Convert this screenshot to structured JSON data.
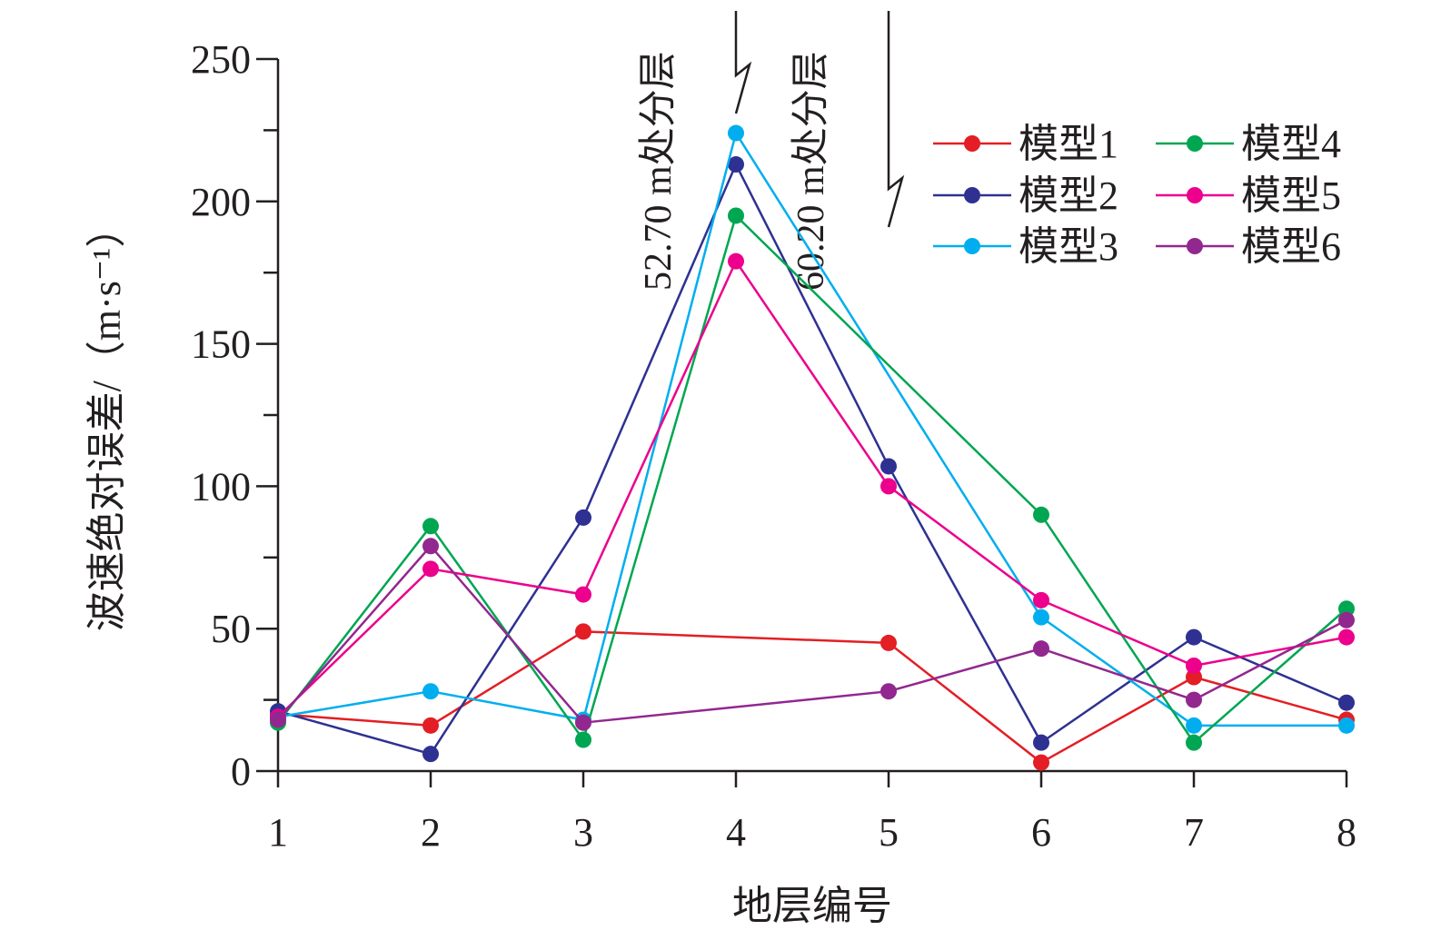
{
  "chart_data": {
    "type": "line",
    "xlabel": "地层编号",
    "ylabel": "波速绝对误差/（m·s⁻¹）",
    "categories": [
      "1",
      "2",
      "3",
      "4",
      "5",
      "6",
      "7",
      "8"
    ],
    "x": [
      1,
      2,
      3,
      4,
      5,
      6,
      7,
      8
    ],
    "ylim": [
      0,
      250
    ],
    "yticks": [
      0,
      50,
      100,
      150,
      200,
      250
    ],
    "ytick_labels": [
      "0",
      "50",
      "100",
      "150",
      "200",
      "250"
    ],
    "grid": false,
    "legend_position": "top-right",
    "series": [
      {
        "name": "模型1",
        "color": "#e31e24",
        "values": [
          20,
          16,
          49,
          null,
          45,
          3,
          33,
          18
        ]
      },
      {
        "name": "模型2",
        "color": "#2e3192",
        "values": [
          21,
          6,
          89,
          213,
          107,
          10,
          47,
          24
        ]
      },
      {
        "name": "模型3",
        "color": "#00aeef",
        "values": [
          19,
          28,
          18,
          224,
          null,
          54,
          16,
          16
        ]
      },
      {
        "name": "模型4",
        "color": "#00a651",
        "values": [
          17,
          86,
          11,
          195,
          null,
          90,
          10,
          57
        ]
      },
      {
        "name": "模型5",
        "color": "#ec008c",
        "values": [
          19,
          71,
          62,
          179,
          100,
          60,
          37,
          47
        ]
      },
      {
        "name": "模型6",
        "color": "#92278f",
        "values": [
          18,
          79,
          17,
          null,
          28,
          43,
          25,
          53
        ]
      }
    ],
    "annotations": [
      {
        "text": "52.70 m处分层",
        "x": 4
      },
      {
        "text": "60.20 m处分层",
        "x": 5
      }
    ]
  }
}
